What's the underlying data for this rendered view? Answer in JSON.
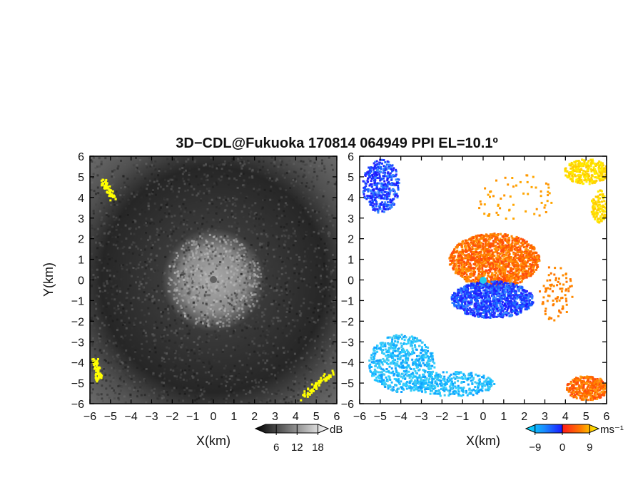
{
  "chart_data": {
    "title": "3D−CDL@Fukuoka 170814 064949 PPI EL=10.1º",
    "xlabel": "X(km)",
    "ylabel": "Y(km)",
    "xlim": [
      -6,
      6
    ],
    "ylim": [
      -6,
      6
    ],
    "ticks": [
      -6,
      -5,
      -4,
      -3,
      -2,
      -1,
      0,
      1,
      2,
      3,
      4,
      5,
      6
    ],
    "tick_labels": [
      "−6",
      "−5",
      "−4",
      "−3",
      "−2",
      "−1",
      "0",
      "1",
      "2",
      "3",
      "4",
      "5",
      "6"
    ],
    "panels": [
      {
        "type": "heatmap",
        "quantity": "reflectivity",
        "colormap": "grayscale",
        "colorbar": {
          "unit": "dB",
          "tick_values": [
            6,
            12,
            18
          ],
          "tick_labels": [
            "6",
            "12",
            "18"
          ],
          "range": [
            0,
            21
          ]
        }
      },
      {
        "type": "heatmap",
        "quantity": "radial velocity",
        "colormap": "cyan-blue-red-orange-yellow",
        "colorbar": {
          "unit": "ms⁻¹",
          "tick_values": [
            -9,
            0,
            9
          ],
          "tick_labels": [
            "−9",
            "0",
            "9"
          ],
          "range": [
            -12,
            12
          ]
        }
      }
    ],
    "colors": {
      "saturation_high": "#ffff00",
      "center_marker_left": "#606060",
      "center_marker_right": "#22ccee"
    }
  }
}
